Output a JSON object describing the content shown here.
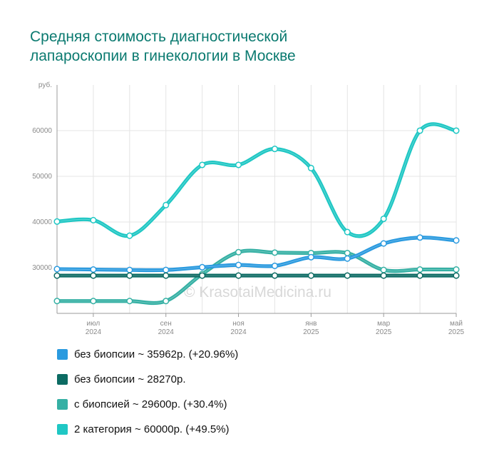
{
  "title_lines": [
    "Средняя стоимость диагностической",
    "лапароскопии в гинекологии в Москве"
  ],
  "watermark": "© KrasotaiMedicina.ru",
  "chart_data": {
    "type": "line",
    "title": "Средняя стоимость диагностической лапароскопии в гинекологии в Москве",
    "ylabel": "руб.",
    "ylim": [
      20000,
      70000
    ],
    "yticks": [
      30000,
      40000,
      50000,
      60000
    ],
    "x": [
      "2024-06",
      "2024-07",
      "2024-08",
      "2024-09",
      "2024-10",
      "2024-11",
      "2024-12",
      "2025-01",
      "2025-02",
      "2025-03",
      "2025-04",
      "2025-05"
    ],
    "xtick_labels": [
      {
        "index": 1,
        "month": "июл",
        "year": "2024"
      },
      {
        "index": 3,
        "month": "сен",
        "year": "2024"
      },
      {
        "index": 5,
        "month": "ноя",
        "year": "2024"
      },
      {
        "index": 7,
        "month": "янв",
        "year": "2025"
      },
      {
        "index": 9,
        "month": "мар",
        "year": "2025"
      },
      {
        "index": 11,
        "month": "май",
        "year": "2025"
      }
    ],
    "grid": true,
    "legend_position": "bottom",
    "series": [
      {
        "name": "без биопсии ~ 35962р. (+20.96%)",
        "color": "#2a9adf",
        "values": [
          29700,
          29600,
          29500,
          29500,
          30100,
          30600,
          30400,
          32300,
          32000,
          35300,
          36600,
          35962
        ]
      },
      {
        "name": "без биопсии ~ 28270р.",
        "color": "#0c6b63",
        "values": [
          28270,
          28270,
          28270,
          28270,
          28270,
          28270,
          28270,
          28270,
          28270,
          28270,
          28270,
          28270
        ]
      },
      {
        "name": "с биопсией ~ 29600р. (+30.4%)",
        "color": "#35b0a4",
        "values": [
          22700,
          22700,
          22700,
          22700,
          28600,
          33400,
          33300,
          33200,
          33200,
          29500,
          29600,
          29600
        ]
      },
      {
        "name": "2 категория ~ 60000р. (+49.5%)",
        "color": "#1fc7c4",
        "values": [
          40100,
          40400,
          37000,
          43700,
          52500,
          52500,
          56000,
          51800,
          37800,
          40700,
          60000,
          60000
        ]
      }
    ]
  }
}
